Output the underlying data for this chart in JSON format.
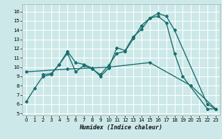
{
  "xlabel": "Humidex (Indice chaleur)",
  "bg_color": "#cce8e8",
  "grid_color": "#ffffff",
  "line_color": "#1a6e6e",
  "xlim": [
    -0.5,
    23.5
  ],
  "ylim": [
    4.8,
    16.8
  ],
  "xticks": [
    0,
    1,
    2,
    3,
    4,
    5,
    6,
    7,
    8,
    9,
    10,
    11,
    12,
    13,
    14,
    15,
    16,
    17,
    18,
    19,
    20,
    21,
    22,
    23
  ],
  "yticks": [
    5,
    6,
    7,
    8,
    9,
    10,
    11,
    12,
    13,
    14,
    15,
    16
  ],
  "line1_x": [
    0,
    1,
    2,
    3,
    4,
    5,
    6,
    7,
    8,
    9,
    10,
    11,
    12,
    13,
    14,
    15,
    16,
    17,
    18,
    22,
    23
  ],
  "line1_y": [
    6.3,
    7.7,
    9.0,
    9.2,
    10.3,
    11.7,
    10.5,
    10.3,
    9.9,
    9.0,
    9.9,
    12.1,
    11.8,
    13.3,
    14.1,
    15.3,
    15.8,
    15.5,
    14.0,
    6.0,
    5.5
  ],
  "line2_x": [
    2,
    3,
    4,
    5,
    6,
    7,
    8,
    9,
    10,
    11,
    12,
    13,
    14,
    15,
    16,
    17,
    18,
    19,
    22,
    23
  ],
  "line2_y": [
    9.2,
    9.3,
    10.3,
    11.5,
    9.5,
    10.2,
    9.8,
    9.2,
    10.2,
    11.5,
    11.7,
    13.1,
    14.5,
    15.3,
    15.5,
    14.8,
    11.5,
    9.0,
    5.5,
    5.5
  ],
  "line3_x": [
    0,
    5,
    10,
    15,
    20,
    23
  ],
  "line3_y": [
    9.5,
    9.8,
    10.0,
    10.5,
    8.0,
    5.5
  ],
  "marker_style": "D",
  "marker_size": 2,
  "linewidth": 1.0,
  "tick_fontsize": 5,
  "xlabel_fontsize": 6
}
